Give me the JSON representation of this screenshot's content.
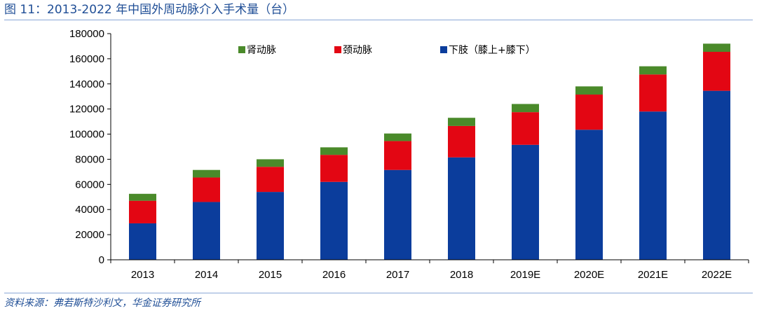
{
  "header": {
    "title": "图 11：2013-2022 年中国外周动脉介入手术量（台）"
  },
  "footer": {
    "source": "资料来源：弗若斯特沙利文，华金证券研究所"
  },
  "chart_data": {
    "type": "bar",
    "stacked": true,
    "categories": [
      "2013",
      "2014",
      "2015",
      "2016",
      "2017",
      "2018",
      "2019E",
      "2020E",
      "2021E",
      "2022E"
    ],
    "series": [
      {
        "name": "下肢（膝上+膝下）",
        "color": "#0b3d9c",
        "values": [
          29000,
          46000,
          54000,
          62000,
          71500,
          81500,
          91500,
          103500,
          118000,
          134500
        ]
      },
      {
        "name": "颈动脉",
        "color": "#e30613",
        "values": [
          18000,
          19500,
          20000,
          21500,
          23000,
          25000,
          26000,
          28000,
          29500,
          31000
        ]
      },
      {
        "name": "肾动脉",
        "color": "#4a8a2a",
        "values": [
          5500,
          6000,
          6000,
          6000,
          6000,
          6500,
          6500,
          6500,
          6500,
          6500
        ]
      }
    ],
    "legend_order": [
      2,
      1,
      0
    ],
    "ylim": [
      0,
      180000
    ],
    "yticks": [
      0,
      20000,
      40000,
      60000,
      80000,
      100000,
      120000,
      140000,
      160000,
      180000
    ],
    "grid": false,
    "legend_position": "top"
  }
}
